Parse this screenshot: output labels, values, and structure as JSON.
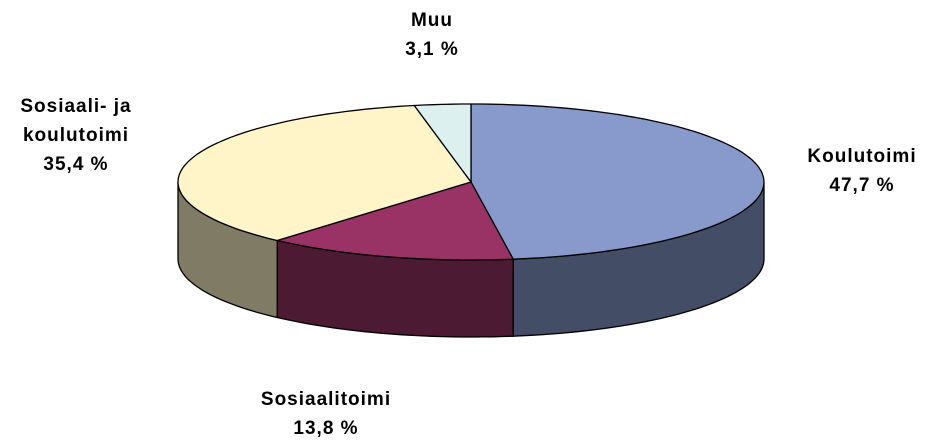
{
  "chart_data": {
    "type": "pie",
    "categories": [
      "Koulutoimi",
      "Sosiaalitoimi",
      "Sosiaali- ja koulutoimi",
      "Muu"
    ],
    "values": [
      47.7,
      13.8,
      35.4,
      3.1
    ],
    "value_labels": [
      "47,7 %",
      "13,8 %",
      "35,4 %",
      "3,1 %"
    ],
    "colors": [
      "#8899cc",
      "#993366",
      "#fff5c8",
      "#ddf0f0"
    ]
  }
}
